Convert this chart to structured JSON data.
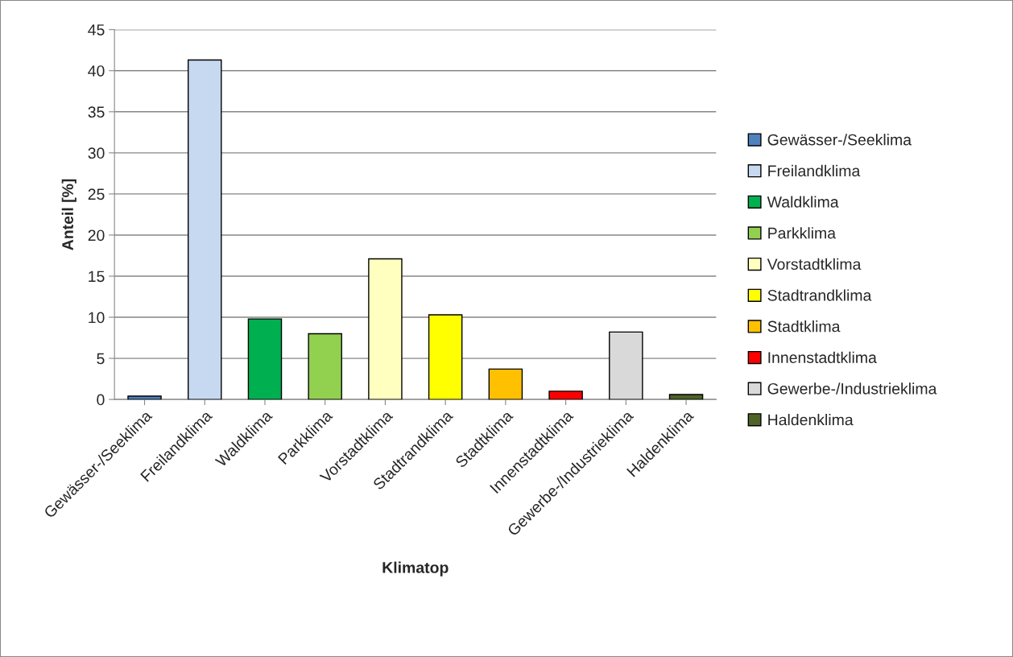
{
  "chart_data": {
    "type": "bar",
    "xlabel": "Klimatop",
    "ylabel": "Anteil [%]",
    "categories": [
      "Gewässer-/Seeklima",
      "Freilandklima",
      "Waldklima",
      "Parkklima",
      "Vorstadtklima",
      "Stadtrandklima",
      "Stadtklima",
      "Innenstadtklima",
      "Gewerbe-/Industrieklima",
      "Haldenklima"
    ],
    "series": [
      {
        "name": "Gewässer-/Seeklima",
        "color": "#4f81bd",
        "values": [
          0.4,
          null,
          null,
          null,
          null,
          null,
          null,
          null,
          null,
          null
        ]
      },
      {
        "name": "Freilandklima",
        "color": "#c6d9f1",
        "values": [
          null,
          41.3,
          null,
          null,
          null,
          null,
          null,
          null,
          null,
          null
        ]
      },
      {
        "name": "Waldklima",
        "color": "#00b050",
        "values": [
          null,
          null,
          9.8,
          null,
          null,
          null,
          null,
          null,
          null,
          null
        ]
      },
      {
        "name": "Parkklima",
        "color": "#92d050",
        "values": [
          null,
          null,
          null,
          8.0,
          null,
          null,
          null,
          null,
          null,
          null
        ]
      },
      {
        "name": "Vorstadtklima",
        "color": "#ffffc0",
        "values": [
          null,
          null,
          null,
          null,
          17.1,
          null,
          null,
          null,
          null,
          null
        ]
      },
      {
        "name": "Stadtrandklima",
        "color": "#ffff00",
        "values": [
          null,
          null,
          null,
          null,
          null,
          10.3,
          null,
          null,
          null,
          null
        ]
      },
      {
        "name": "Stadtklima",
        "color": "#ffc000",
        "values": [
          null,
          null,
          null,
          null,
          null,
          null,
          3.7,
          null,
          null,
          null
        ]
      },
      {
        "name": "Innenstadtklima",
        "color": "#ff0000",
        "values": [
          null,
          null,
          null,
          null,
          null,
          null,
          null,
          1.0,
          null,
          null
        ]
      },
      {
        "name": "Gewerbe-/Industrieklima",
        "color": "#d9d9d9",
        "values": [
          null,
          null,
          null,
          null,
          null,
          null,
          null,
          null,
          8.2,
          null
        ]
      },
      {
        "name": "Haldenklima",
        "color": "#4f6228",
        "values": [
          null,
          null,
          null,
          null,
          null,
          null,
          null,
          null,
          null,
          0.6
        ]
      }
    ],
    "ylim": [
      0,
      45
    ],
    "yticks": [
      0,
      5,
      10,
      15,
      20,
      25,
      30,
      35,
      40,
      45
    ],
    "grid": "y",
    "legend": "right"
  }
}
